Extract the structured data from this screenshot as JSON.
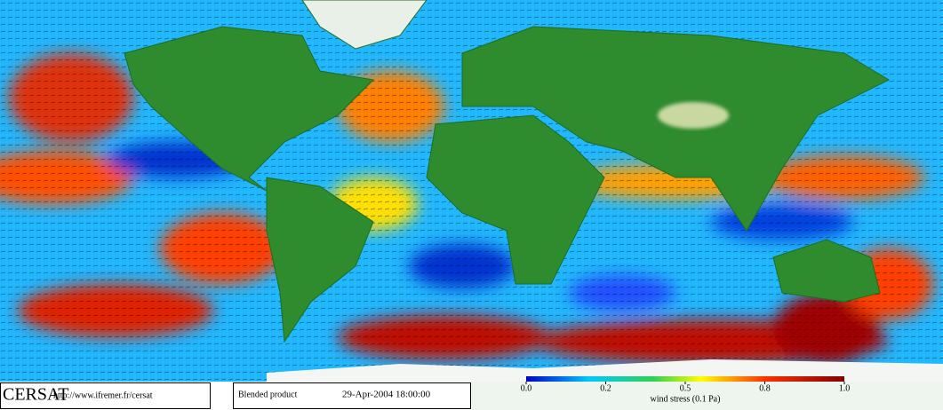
{
  "footer": {
    "logo": "CERSAT",
    "url": "http://www.ifremer.fr/cersat",
    "product": "Blended product",
    "datetime": "29-Apr-2004 18:00:00"
  },
  "colorbar": {
    "ticks": [
      {
        "value": 0,
        "label": "0.0"
      },
      0.2,
      0.5,
      0.8,
      {
        "value": 1,
        "label": "1.0"
      }
    ],
    "label": "wind stress (0.1 Pa)"
  }
}
